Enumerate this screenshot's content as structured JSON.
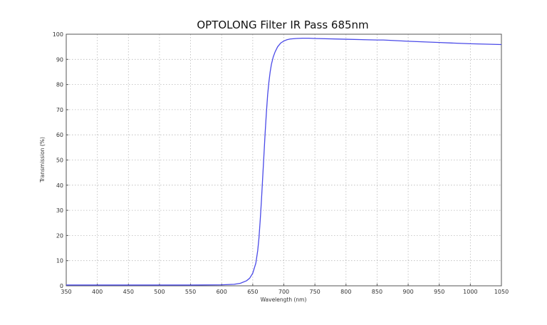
{
  "chart_data": {
    "type": "line",
    "title": "OPTOLONG Filter IR Pass 685nm",
    "xlabel": "Wavelength (nm)",
    "ylabel": "Transmission (%)",
    "xlim": [
      350,
      1050
    ],
    "ylim": [
      0,
      100
    ],
    "xticks": [
      350,
      400,
      450,
      500,
      550,
      600,
      650,
      700,
      750,
      800,
      850,
      900,
      950,
      1000,
      1050
    ],
    "yticks": [
      0,
      10,
      20,
      30,
      40,
      50,
      60,
      70,
      80,
      90,
      100
    ],
    "grid": true,
    "series": [
      {
        "color": "#4a4ae8",
        "x": [
          350,
          400,
          450,
          500,
          550,
          600,
          620,
          630,
          640,
          645,
          650,
          655,
          658,
          660,
          662,
          664,
          666,
          668,
          670,
          672,
          674,
          676,
          678,
          680,
          683,
          686,
          690,
          695,
          700,
          705,
          710,
          720,
          730,
          740,
          750,
          800,
          850,
          860,
          900,
          950,
          1000,
          1050
        ],
        "y": [
          0.3,
          0.3,
          0.3,
          0.3,
          0.3,
          0.4,
          0.6,
          1.0,
          2.0,
          3.0,
          5.0,
          9.0,
          14.0,
          19.0,
          26.0,
          34.0,
          43.0,
          52.0,
          61.0,
          69.0,
          76.0,
          81.0,
          85.0,
          88.0,
          91.0,
          93.0,
          95.0,
          96.5,
          97.3,
          97.8,
          98.1,
          98.3,
          98.4,
          98.4,
          98.3,
          98.0,
          97.7,
          97.7,
          97.2,
          96.7,
          96.2,
          95.9
        ]
      }
    ]
  }
}
